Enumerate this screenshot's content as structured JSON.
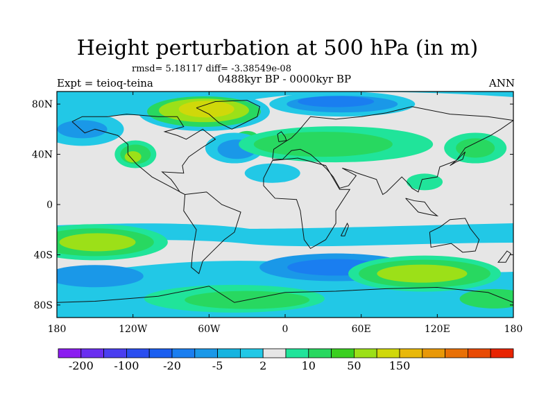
{
  "title": "Height perturbation at 500 hPa (in m)",
  "stats": "rmsd= 5.18117 diff= -3.38549e-08",
  "subtitle": "0488kyr BP - 0000kyr BP",
  "left_label": "Expt = teioq-teina",
  "right_label": "ANN",
  "chart_data": {
    "type": "heatmap",
    "title": "Height perturbation at 500 hPa (in m)",
    "projection": "cylindrical-equidistant",
    "xlim": [
      -180,
      180
    ],
    "ylim": [
      -90,
      90
    ],
    "x_ticks": [
      -180,
      -120,
      -60,
      0,
      60,
      120,
      180
    ],
    "x_tick_labels": [
      "180",
      "120W",
      "60W",
      "0",
      "60E",
      "120E",
      "180"
    ],
    "y_ticks": [
      80,
      40,
      0,
      -40,
      -80
    ],
    "y_tick_labels": [
      "80N",
      "40N",
      "0",
      "40S",
      "80S"
    ],
    "background_fill": "#e6e6e6",
    "colorbar": {
      "labels": [
        "-200",
        "-100",
        "-20",
        "-5",
        "2",
        "10",
        "50",
        "150"
      ],
      "colors": [
        "#8b1cf0",
        "#6a2ef0",
        "#4a3ef0",
        "#2a4ef0",
        "#1a5ef0",
        "#1a7ef0",
        "#1a98e8",
        "#16b4e0",
        "#22c8e6",
        "#e6e6e6",
        "#20e49a",
        "#28d860",
        "#3ad020",
        "#9ce018",
        "#d0d80a",
        "#e8b80a",
        "#e89808",
        "#e87006",
        "#e84a04",
        "#e82402"
      ]
    },
    "features": [
      {
        "name": "Greenland/Canada high",
        "lon": -65,
        "lat": 75,
        "value_range": [
          10,
          50
        ]
      },
      {
        "name": "North Pacific low",
        "lon": -160,
        "lat": 58,
        "value_range": [
          -20,
          -5
        ]
      },
      {
        "name": "Eastern Pacific high",
        "lon": -115,
        "lat": 40,
        "value_range": [
          10,
          50
        ]
      },
      {
        "name": "North Atlantic low",
        "lon": -38,
        "lat": 45,
        "value_range": [
          -20,
          -5
        ]
      },
      {
        "name": "Arctic low (Siberia)",
        "lon": 40,
        "lat": 80,
        "value_range": [
          -20,
          -5
        ]
      },
      {
        "name": "Eurasian high",
        "lon": 40,
        "lat": 45,
        "value_range": [
          2,
          10
        ]
      },
      {
        "name": "South Pacific high",
        "lon": -150,
        "lat": -30,
        "value_range": [
          10,
          50
        ]
      },
      {
        "name": "Southern Ocean high",
        "lon": 105,
        "lat": -55,
        "value_range": [
          10,
          50
        ]
      },
      {
        "name": "Antarctic low",
        "lon": 40,
        "lat": -52,
        "value_range": [
          -20,
          -5
        ]
      }
    ]
  }
}
